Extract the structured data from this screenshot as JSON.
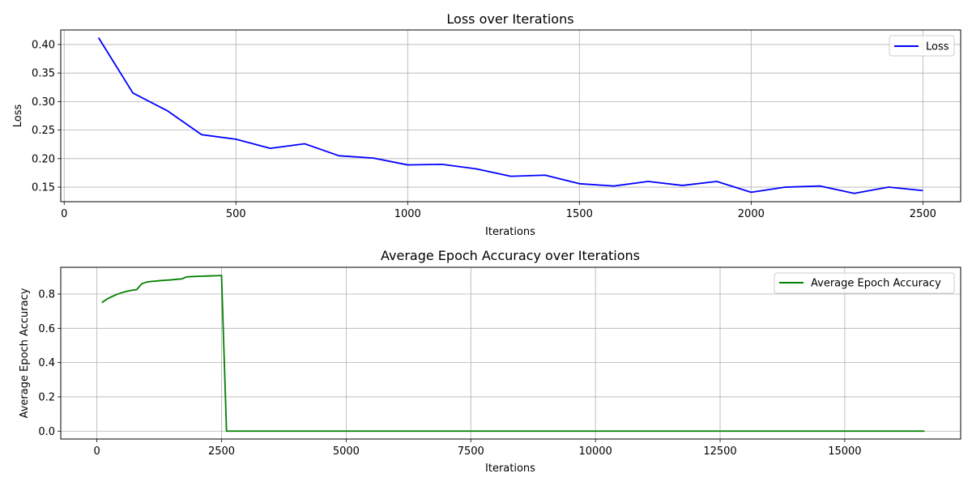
{
  "chart_data": [
    {
      "type": "line",
      "title": "Loss over Iterations",
      "xlabel": "Iterations",
      "ylabel": "Loss",
      "xlim": [
        -10,
        2610
      ],
      "ylim": [
        0.1245,
        0.4255
      ],
      "xticks": [
        0,
        500,
        1000,
        1500,
        2000,
        2500
      ],
      "xtick_labels": [
        "0",
        "500",
        "1000",
        "1500",
        "2000",
        "2500"
      ],
      "yticks": [
        0.15,
        0.2,
        0.25,
        0.3,
        0.35,
        0.4
      ],
      "ytick_labels": [
        "0.15",
        "0.20",
        "0.25",
        "0.30",
        "0.35",
        "0.40"
      ],
      "grid": true,
      "legend_position": "top-right",
      "series": [
        {
          "name": "Loss",
          "color": "#0000ff",
          "x": [
            100,
            200,
            300,
            400,
            500,
            600,
            700,
            800,
            900,
            1000,
            1100,
            1200,
            1300,
            1400,
            1500,
            1600,
            1700,
            1800,
            1900,
            2000,
            2100,
            2200,
            2300,
            2400,
            2500
          ],
          "y": [
            0.412,
            0.315,
            0.284,
            0.242,
            0.234,
            0.218,
            0.226,
            0.205,
            0.201,
            0.189,
            0.19,
            0.182,
            0.169,
            0.171,
            0.156,
            0.152,
            0.16,
            0.153,
            0.16,
            0.141,
            0.15,
            0.152,
            0.139,
            0.15,
            0.144
          ]
        }
      ]
    },
    {
      "type": "line",
      "title": "Average Epoch Accuracy over Iterations",
      "xlabel": "Iterations",
      "ylabel": "Average Epoch Accuracy",
      "xlim": [
        -725,
        17325
      ],
      "ylim": [
        -0.046,
        0.956
      ],
      "xticks": [
        0,
        2500,
        5000,
        7500,
        10000,
        12500,
        15000
      ],
      "xtick_labels": [
        "0",
        "2500",
        "5000",
        "7500",
        "10000",
        "12500",
        "15000"
      ],
      "yticks": [
        0.0,
        0.2,
        0.4,
        0.6,
        0.8
      ],
      "ytick_labels": [
        "0.0",
        "0.2",
        "0.4",
        "0.6",
        "0.8"
      ],
      "grid": true,
      "legend_position": "top-right",
      "series": [
        {
          "name": "Average Epoch Accuracy",
          "color": "#008000",
          "x": [
            100,
            200,
            300,
            400,
            500,
            600,
            700,
            800,
            900,
            1000,
            1100,
            1200,
            1300,
            1400,
            1500,
            1600,
            1700,
            1800,
            1900,
            2000,
            2100,
            2200,
            2300,
            2400,
            2500,
            2600,
            16600
          ],
          "y": [
            0.75,
            0.77,
            0.785,
            0.798,
            0.808,
            0.816,
            0.822,
            0.826,
            0.86,
            0.87,
            0.874,
            0.876,
            0.879,
            0.881,
            0.883,
            0.886,
            0.888,
            0.9,
            0.902,
            0.903,
            0.904,
            0.905,
            0.906,
            0.907,
            0.908,
            0.0,
            0.0
          ]
        }
      ]
    }
  ]
}
